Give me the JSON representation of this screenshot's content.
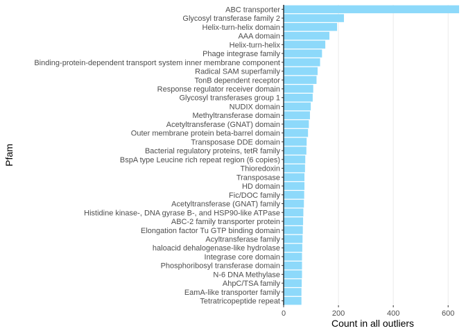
{
  "chart_data": {
    "type": "bar",
    "orientation": "horizontal",
    "xlabel": "Count in all outliers",
    "ylabel": "Pfam",
    "xlim": [
      0,
      650
    ],
    "xticks": [
      0,
      200,
      400,
      600
    ],
    "grid": "vertical major lines",
    "bar_color": "#8dd9fa",
    "categories": [
      "ABC transporter",
      "Glycosyl transferase family 2",
      "Helix-turn-helix domain",
      "AAA domain",
      "Helix-turn-helix",
      "Phage integrase family",
      "Binding-protein-dependent transport system inner membrane component",
      "Radical SAM superfamily",
      "TonB dependent receptor",
      "Response regulator receiver domain",
      "Glycosyl transferases group 1",
      "NUDIX domain",
      "Methyltransferase domain",
      "Acetyltransferase (GNAT) domain",
      "Outer membrane protein beta-barrel domain",
      "Transposase DDE domain",
      "Bacterial regulatory proteins, tetR family",
      "BspA type Leucine rich repeat region (6 copies)",
      "Thioredoxin",
      "Transposase",
      "HD domain",
      "Fic/DOC family",
      "Acetyltransferase (GNAT) family",
      "Histidine kinase-, DNA gyrase B-, and HSP90-like ATPase",
      "ABC-2 family transporter protein",
      "Elongation factor Tu GTP binding domain",
      "Acyltransferase family",
      "haloacid dehalogenase-like hydrolase",
      "Integrase core domain",
      "Phosphoribosyl transferase domain",
      "N-6 DNA Methylase",
      "AhpC/TSA family",
      "EamA-like transporter family",
      "Tetratricopeptide repeat"
    ],
    "values": [
      640,
      220,
      195,
      167,
      152,
      140,
      133,
      124,
      120,
      108,
      106,
      99,
      96,
      92,
      89,
      84,
      83,
      79,
      78,
      76,
      76,
      75,
      74,
      72,
      71,
      70,
      69,
      68,
      67,
      67,
      67,
      66,
      65,
      65
    ]
  }
}
